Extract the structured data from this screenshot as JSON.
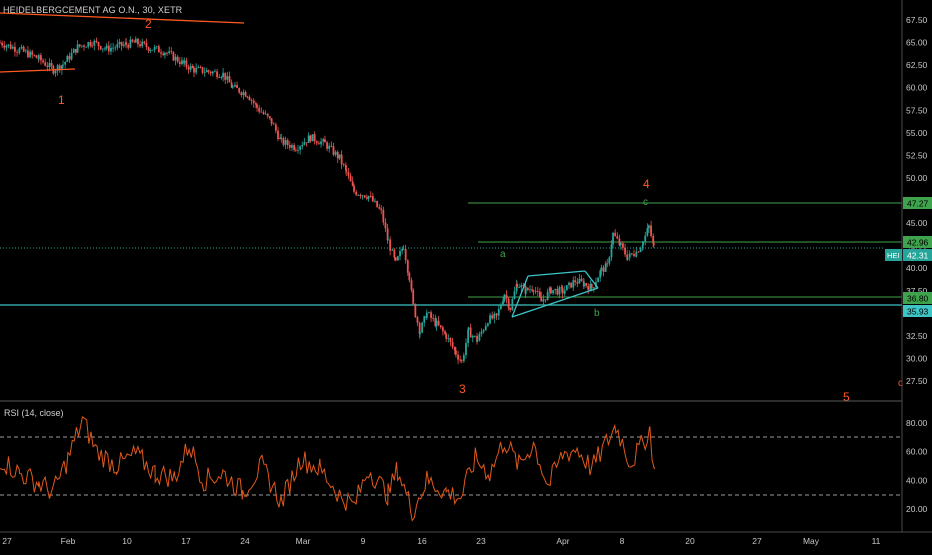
{
  "header": {
    "title": "HEIDELBERGCEMENT AG O.N., 30, XETR",
    "rsi_label": "RSI (14, close)"
  },
  "colors": {
    "background": "#000000",
    "candle_up": "#26a69a",
    "candle_down": "#ef5350",
    "level_green": "#3fa34d",
    "trend_cyan": "#3dc4c4",
    "wave_orange": "#ff5a1f",
    "rsi_line": "#e0591c",
    "axis_text": "#c8c8c8"
  },
  "chart_data": [
    {
      "type": "candlestick",
      "title": "HEIDELBERGCEMENT AG O.N., 30, XETR",
      "ylim": [
        25.5,
        69.5
      ],
      "y_ticks": [
        "67.50",
        "65.00",
        "62.50",
        "60.00",
        "57.50",
        "55.00",
        "52.50",
        "50.00",
        "47.50",
        "45.00",
        "42.50",
        "40.00",
        "37.50",
        "35.00",
        "32.50",
        "30.00",
        "27.50"
      ],
      "x_ticks": [
        "27",
        "Feb",
        "10",
        "17",
        "24",
        "Mar",
        "9",
        "16",
        "23",
        "Apr",
        "8",
        "20",
        "27",
        "May",
        "11"
      ],
      "price_path": [
        {
          "t": 0.0,
          "p": 65.0
        },
        {
          "t": 2.0,
          "p": 64.2
        },
        {
          "t": 4.0,
          "p": 63.2
        },
        {
          "t": 5.5,
          "p": 62.0
        },
        {
          "t": 6.5,
          "p": 62.6
        },
        {
          "t": 8.0,
          "p": 64.5
        },
        {
          "t": 9.5,
          "p": 65.1
        },
        {
          "t": 11.0,
          "p": 64.3
        },
        {
          "t": 13.0,
          "p": 64.8
        },
        {
          "t": 14.0,
          "p": 65.0
        },
        {
          "t": 15.5,
          "p": 64.4
        },
        {
          "t": 17.0,
          "p": 64.0
        },
        {
          "t": 19.0,
          "p": 62.6
        },
        {
          "t": 20.0,
          "p": 62.0
        },
        {
          "t": 21.5,
          "p": 61.8
        },
        {
          "t": 23.0,
          "p": 61.5
        },
        {
          "t": 24.0,
          "p": 60.0
        },
        {
          "t": 25.5,
          "p": 59.3
        },
        {
          "t": 26.5,
          "p": 57.8
        },
        {
          "t": 28.0,
          "p": 56.2
        },
        {
          "t": 29.0,
          "p": 54.0
        },
        {
          "t": 30.5,
          "p": 53.4
        },
        {
          "t": 32.0,
          "p": 54.5
        },
        {
          "t": 33.5,
          "p": 53.8
        },
        {
          "t": 35.0,
          "p": 52.2
        },
        {
          "t": 35.7,
          "p": 50.6
        },
        {
          "t": 36.5,
          "p": 48.5
        },
        {
          "t": 38.0,
          "p": 48.0
        },
        {
          "t": 39.3,
          "p": 46.2
        },
        {
          "t": 40.0,
          "p": 43.0
        },
        {
          "t": 40.8,
          "p": 40.5
        },
        {
          "t": 41.6,
          "p": 42.5
        },
        {
          "t": 42.2,
          "p": 39.0
        },
        {
          "t": 42.6,
          "p": 35.8
        },
        {
          "t": 43.3,
          "p": 33.0
        },
        {
          "t": 44.0,
          "p": 35.0
        },
        {
          "t": 45.0,
          "p": 33.8
        },
        {
          "t": 46.0,
          "p": 32.5
        },
        {
          "t": 47.0,
          "p": 30.6
        },
        {
          "t": 47.6,
          "p": 29.6
        },
        {
          "t": 48.3,
          "p": 33.0
        },
        {
          "t": 49.2,
          "p": 32.0
        },
        {
          "t": 50.3,
          "p": 34.3
        },
        {
          "t": 51.2,
          "p": 34.6
        },
        {
          "t": 52.0,
          "p": 37.2
        },
        {
          "t": 52.6,
          "p": 35.6
        },
        {
          "t": 53.3,
          "p": 38.3
        },
        {
          "t": 54.2,
          "p": 37.5
        },
        {
          "t": 55.0,
          "p": 37.9
        },
        {
          "t": 55.8,
          "p": 36.3
        },
        {
          "t": 56.8,
          "p": 37.6
        },
        {
          "t": 58.0,
          "p": 37.4
        },
        {
          "t": 59.3,
          "p": 38.6
        },
        {
          "t": 60.2,
          "p": 38.3
        },
        {
          "t": 61.0,
          "p": 37.8
        },
        {
          "t": 62.0,
          "p": 39.8
        },
        {
          "t": 62.6,
          "p": 40.2
        },
        {
          "t": 63.2,
          "p": 43.8
        },
        {
          "t": 64.0,
          "p": 42.4
        },
        {
          "t": 64.7,
          "p": 41.2
        },
        {
          "t": 65.6,
          "p": 41.8
        },
        {
          "t": 66.3,
          "p": 42.9
        },
        {
          "t": 66.9,
          "p": 44.6
        },
        {
          "t": 67.4,
          "p": 42.3
        }
      ],
      "horizontal_levels": [
        {
          "price": 47.27,
          "label": "47.27",
          "style": "solid",
          "color_key": "level_green"
        },
        {
          "price": 42.96,
          "label": "42.96",
          "style": "solid",
          "color_key": "level_green"
        },
        {
          "price": 42.31,
          "label": "42.31",
          "style": "dotted",
          "color_key": "candle_up",
          "tag": "HEI"
        },
        {
          "price": 36.8,
          "label": "36.80",
          "style": "solid",
          "color_key": "level_green"
        },
        {
          "price": 35.93,
          "label": "35.93",
          "style": "solid",
          "color_key": "trend_cyan"
        }
      ],
      "wave_labels_primary": [
        "1",
        "2",
        "3",
        "4",
        "5"
      ],
      "wave_labels_corrective": [
        "a",
        "b",
        "c"
      ],
      "edge_mark": "c"
    },
    {
      "type": "line",
      "title": "RSI (14, close)",
      "ylim": [
        10,
        90
      ],
      "y_ticks": [
        "80.00",
        "60.00",
        "40.00",
        "20.00"
      ],
      "bands": [
        70,
        30
      ],
      "series": [
        {
          "values": [
            {
              "t": 0.0,
              "v": 55
            },
            {
              "t": 2.0,
              "v": 45
            },
            {
              "t": 4.0,
              "v": 38
            },
            {
              "t": 5.5,
              "v": 32
            },
            {
              "t": 7.0,
              "v": 55
            },
            {
              "t": 8.5,
              "v": 82
            },
            {
              "t": 10.0,
              "v": 60
            },
            {
              "t": 12.0,
              "v": 50
            },
            {
              "t": 14.0,
              "v": 58
            },
            {
              "t": 16.0,
              "v": 45
            },
            {
              "t": 18.0,
              "v": 42
            },
            {
              "t": 19.5,
              "v": 65
            },
            {
              "t": 21.0,
              "v": 40
            },
            {
              "t": 23.0,
              "v": 45
            },
            {
              "t": 25.0,
              "v": 32
            },
            {
              "t": 27.0,
              "v": 50
            },
            {
              "t": 29.0,
              "v": 25
            },
            {
              "t": 31.0,
              "v": 55
            },
            {
              "t": 33.0,
              "v": 48
            },
            {
              "t": 35.0,
              "v": 30
            },
            {
              "t": 36.5,
              "v": 22
            },
            {
              "t": 38.0,
              "v": 48
            },
            {
              "t": 40.0,
              "v": 30
            },
            {
              "t": 41.0,
              "v": 48
            },
            {
              "t": 42.5,
              "v": 18
            },
            {
              "t": 44.0,
              "v": 40
            },
            {
              "t": 46.0,
              "v": 32
            },
            {
              "t": 47.5,
              "v": 28
            },
            {
              "t": 49.0,
              "v": 55
            },
            {
              "t": 50.5,
              "v": 45
            },
            {
              "t": 52.0,
              "v": 68
            },
            {
              "t": 53.5,
              "v": 50
            },
            {
              "t": 55.0,
              "v": 66
            },
            {
              "t": 56.5,
              "v": 36
            },
            {
              "t": 58.0,
              "v": 58
            },
            {
              "t": 59.5,
              "v": 62
            },
            {
              "t": 61.0,
              "v": 48
            },
            {
              "t": 62.5,
              "v": 66
            },
            {
              "t": 63.5,
              "v": 78
            },
            {
              "t": 65.0,
              "v": 52
            },
            {
              "t": 66.3,
              "v": 66
            },
            {
              "t": 67.0,
              "v": 76
            },
            {
              "t": 67.5,
              "v": 44
            }
          ]
        }
      ]
    }
  ]
}
